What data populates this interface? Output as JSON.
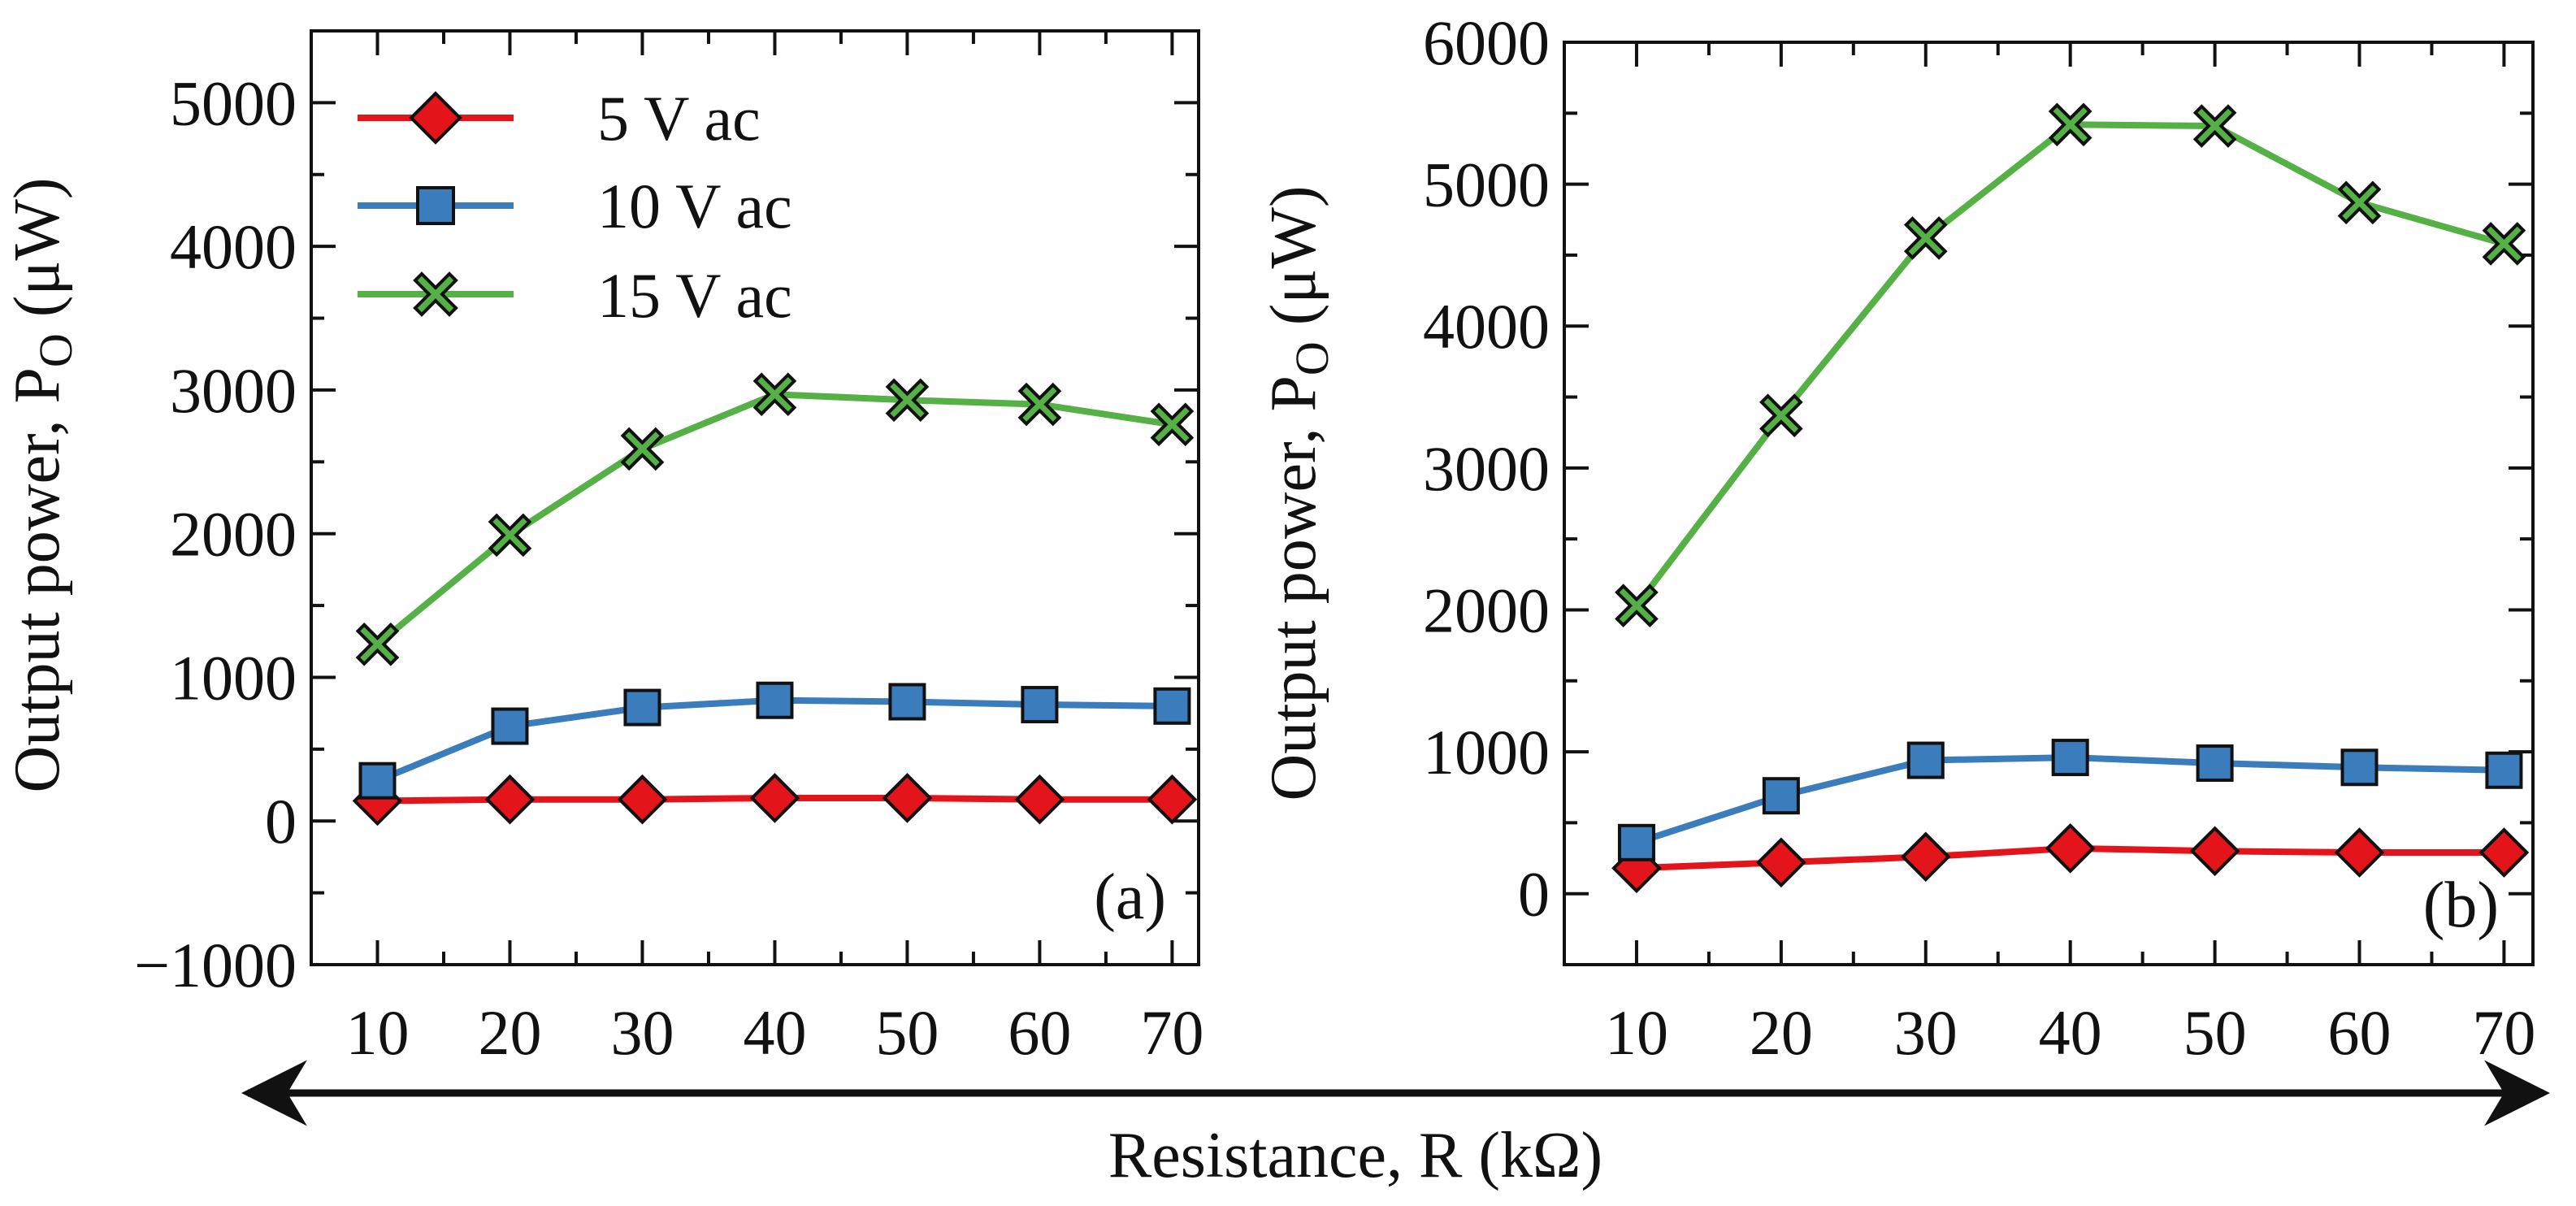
{
  "shared": {
    "xlabel": "Resistance, R (kΩ)",
    "ylabel_main": "Output power, P",
    "ylabel_sub": "O",
    "ylabel_unit": " (μW)"
  },
  "colors": {
    "5V": "#e4141b",
    "10V": "#3b7cbd",
    "15V": "#55b046",
    "stroke": "#111111"
  },
  "chart_data": [
    {
      "type": "line",
      "panel": "(a)",
      "x": [
        10,
        20,
        30,
        40,
        50,
        60,
        70
      ],
      "xlim": [
        5,
        72
      ],
      "ylim": [
        -1000,
        5500
      ],
      "yticks": [
        -1000,
        0,
        1000,
        2000,
        3000,
        4000,
        5000
      ],
      "ytick_labels": [
        "−1000",
        "0",
        "1000",
        "2000",
        "3000",
        "4000",
        "5000"
      ],
      "xticks": [
        10,
        20,
        30,
        40,
        50,
        60,
        70
      ],
      "xtick_labels": [
        "10",
        "20",
        "30",
        "40",
        "50",
        "60",
        "70"
      ],
      "legend": "top-left",
      "series": [
        {
          "name": "5 V ac",
          "key": "5V",
          "marker": "diamond",
          "values": [
            140,
            150,
            150,
            160,
            160,
            150,
            150
          ]
        },
        {
          "name": "10 V ac",
          "key": "10V",
          "marker": "square",
          "values": [
            280,
            660,
            790,
            840,
            830,
            810,
            800
          ]
        },
        {
          "name": "15 V ac",
          "key": "15V",
          "marker": "x",
          "values": [
            1230,
            1990,
            2590,
            2970,
            2930,
            2900,
            2760
          ]
        }
      ]
    },
    {
      "type": "line",
      "panel": "(b)",
      "x": [
        10,
        20,
        30,
        40,
        50,
        60,
        70
      ],
      "xlim": [
        5,
        72
      ],
      "ylim": [
        -500,
        6000
      ],
      "yticks": [
        0,
        1000,
        2000,
        3000,
        4000,
        5000,
        6000
      ],
      "ytick_labels": [
        "0",
        "1000",
        "2000",
        "3000",
        "4000",
        "5000",
        "6000"
      ],
      "xticks": [
        10,
        20,
        30,
        40,
        50,
        60,
        70
      ],
      "xtick_labels": [
        "10",
        "20",
        "30",
        "40",
        "50",
        "60",
        "70"
      ],
      "legend": "none",
      "series": [
        {
          "name": "5 V ac",
          "key": "5V",
          "marker": "diamond",
          "values": [
            180,
            220,
            260,
            320,
            300,
            290,
            290
          ]
        },
        {
          "name": "10 V ac",
          "key": "10V",
          "marker": "square",
          "values": [
            360,
            690,
            940,
            960,
            920,
            890,
            870
          ]
        },
        {
          "name": "15 V ac",
          "key": "15V",
          "marker": "x",
          "values": [
            2030,
            3370,
            4620,
            5420,
            5410,
            4870,
            4580
          ]
        }
      ]
    }
  ]
}
